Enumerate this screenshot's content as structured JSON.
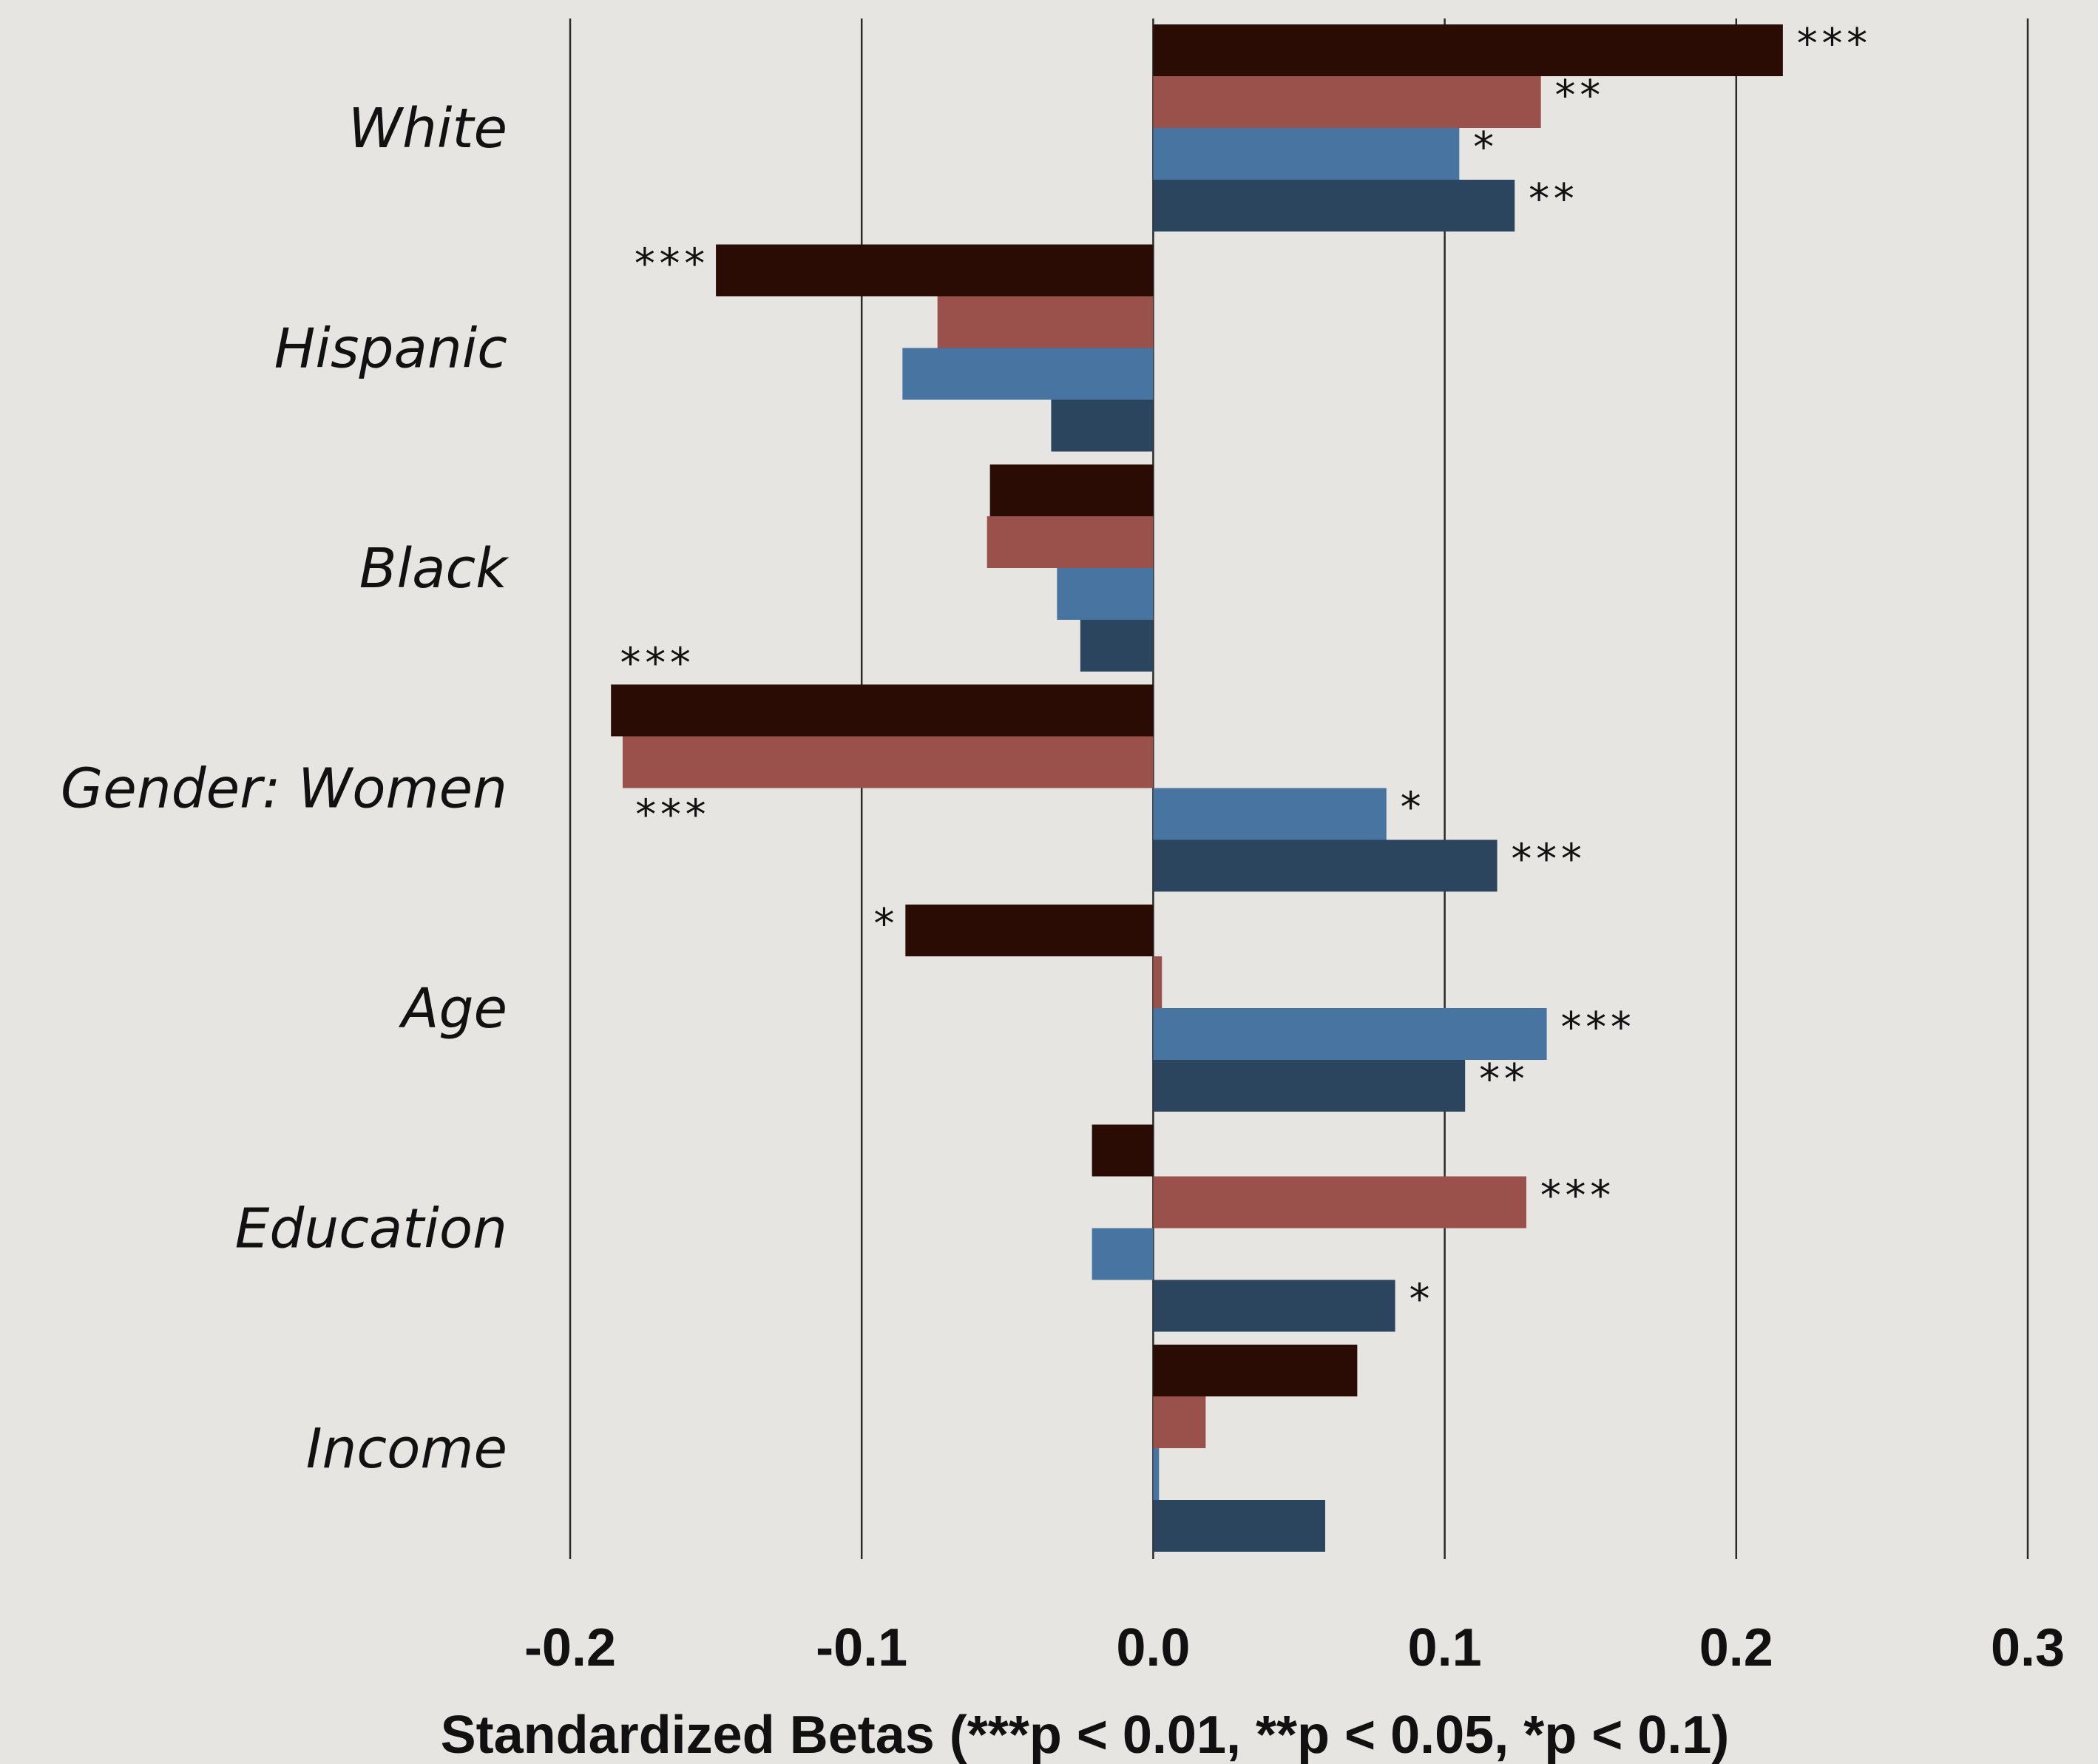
{
  "chart_data": {
    "type": "bar",
    "orientation": "horizontal",
    "xlabel": "Standardized Betas (***p < 0.01, **p < 0.05, *p < 0.1)",
    "xlim": [
      -0.2,
      0.3
    ],
    "xticks": [
      "-0.2",
      "-0.1",
      "0.0",
      "0.1",
      "0.2",
      "0.3"
    ],
    "grid": true,
    "legend": "none",
    "categories": [
      "White",
      "Hispanic",
      "Black",
      "Gender: Women",
      "Age",
      "Education",
      "Income"
    ],
    "series": [
      {
        "color": "#2b0c05",
        "values": [
          0.216,
          -0.15,
          -0.056,
          -0.186,
          -0.085,
          -0.021,
          0.07
        ],
        "sig": [
          "***",
          "***",
          "",
          "***",
          "*",
          "",
          ""
        ]
      },
      {
        "color": "#9a514c",
        "values": [
          0.133,
          -0.074,
          -0.057,
          -0.182,
          0.003,
          0.128,
          0.018
        ],
        "sig": [
          "**",
          "",
          "",
          "***",
          "",
          "***",
          ""
        ]
      },
      {
        "color": "#4774a0",
        "values": [
          0.105,
          -0.086,
          -0.033,
          0.08,
          0.135,
          -0.021,
          0.002
        ],
        "sig": [
          "*",
          "",
          "",
          "*",
          "***",
          "",
          ""
        ]
      },
      {
        "color": "#2b455f",
        "values": [
          0.124,
          -0.035,
          -0.025,
          0.118,
          0.107,
          0.083,
          0.059
        ],
        "sig": [
          "**",
          "",
          "",
          "***",
          "**",
          "*",
          ""
        ]
      }
    ]
  }
}
